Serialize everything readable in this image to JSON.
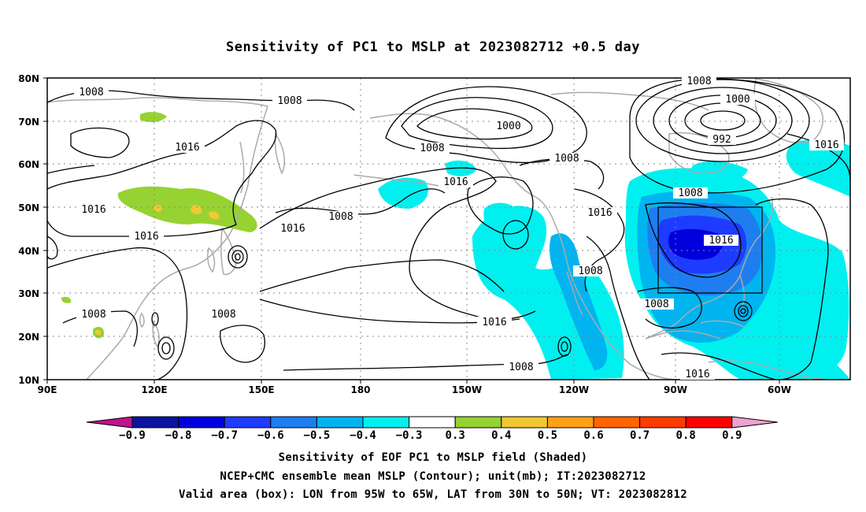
{
  "title": "Sensitivity of PC1 to MSLP at 2023082712 +0.5 day",
  "lat_labels": [
    "80N",
    "70N",
    "60N",
    "50N",
    "40N",
    "30N",
    "20N",
    "10N"
  ],
  "lon_labels": [
    "90E",
    "120E",
    "150E",
    "180",
    "150W",
    "120W",
    "90W",
    "60W"
  ],
  "contour_labels": [
    "1008",
    "1008",
    "1008",
    "1000",
    "1000",
    "992",
    "1016",
    "1016",
    "1016",
    "1016",
    "1016",
    "1016",
    "1016",
    "1016",
    "1008",
    "1008",
    "1008",
    "1008",
    "1008",
    "1008",
    "1008",
    "1008",
    "1008",
    "1016",
    "1016"
  ],
  "colorbar": {
    "labels": [
      "-0.9",
      "-0.8",
      "-0.7",
      "-0.6",
      "-0.5",
      "-0.4",
      "-0.3",
      "0.3",
      "0.4",
      "0.5",
      "0.6",
      "0.7",
      "0.8",
      "0.9"
    ],
    "colors": [
      "#c0148c",
      "#0a14a0",
      "#0000dc",
      "#1e3cff",
      "#1e7ef0",
      "#00b4f0",
      "#00f0f0",
      "#ffffff",
      "#96d232",
      "#f0c832",
      "#ffa014",
      "#ff6400",
      "#ff3c00",
      "#ff0000",
      "#f0a0d2"
    ]
  },
  "colors": {
    "coast": "#aaaaaa",
    "contour": "#000000",
    "grid": "#888888"
  },
  "caption": {
    "line1": "Sensitivity of EOF PC1 to MSLP field (Shaded)",
    "line2": "NCEP+CMC ensemble mean MSLP (Contour); unit(mb); IT:2023082712",
    "line3": "Valid area (box): LON from 95W to 65W, LAT from 30N to 50N; VT: 2023082812"
  }
}
